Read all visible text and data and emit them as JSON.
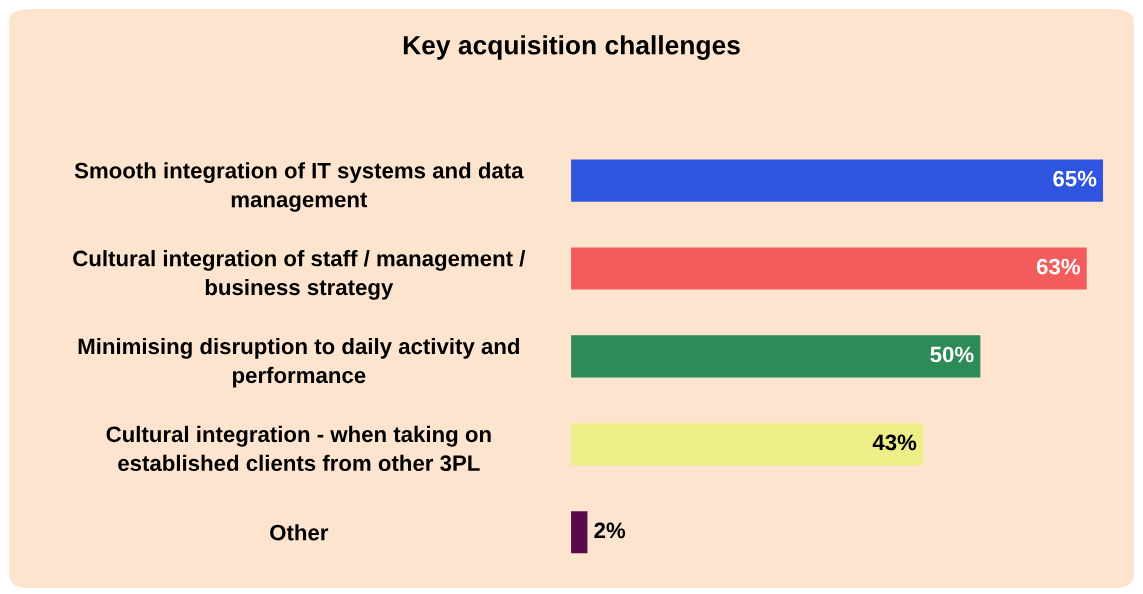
{
  "chart_data": {
    "type": "bar",
    "orientation": "horizontal",
    "title": "Key acquisition challenges",
    "categories": [
      "Smooth integration of IT systems and data\nmanagement",
      "Cultural integration of staff / management /\nbusiness strategy",
      "Minimising disruption to daily activity and\nperformance",
      "Cultural integration - when taking on\nestablished clients from other 3PL",
      "Other"
    ],
    "values": [
      65,
      63,
      50,
      43,
      2
    ],
    "value_labels": [
      "65%",
      "63%",
      "50%",
      "43%",
      "2%"
    ],
    "colors": [
      "#2f55e0",
      "#f25c5c",
      "#2e8b57",
      "#eeee88",
      "#5a0a4a"
    ]
  }
}
